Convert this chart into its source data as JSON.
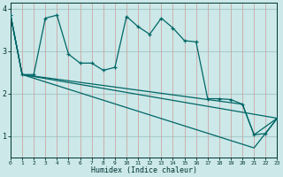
{
  "xlabel": "Humidex (Indice chaleur)",
  "bg_color": "#cce8e8",
  "h_grid_color": "#aacccc",
  "v_grid_color": "#cc9999",
  "line_color": "#006666",
  "x_ticks": [
    0,
    1,
    2,
    3,
    4,
    5,
    6,
    7,
    8,
    9,
    10,
    11,
    12,
    13,
    14,
    15,
    16,
    17,
    18,
    19,
    20,
    21,
    22,
    23
  ],
  "y_ticks": [
    1,
    2,
    3,
    4
  ],
  "xlim": [
    0,
    23
  ],
  "ylim": [
    0.5,
    4.15
  ],
  "main_line": {
    "x": [
      0,
      1,
      2,
      3,
      4,
      5,
      6,
      7,
      8,
      9,
      10,
      11,
      12,
      13,
      14,
      15,
      16,
      17,
      18,
      19,
      20,
      21,
      22,
      23
    ],
    "y": [
      3.85,
      2.45,
      2.45,
      3.78,
      3.85,
      2.93,
      2.72,
      2.72,
      2.55,
      2.62,
      3.82,
      3.58,
      3.4,
      3.78,
      3.55,
      3.25,
      3.22,
      1.88,
      1.88,
      1.86,
      1.75,
      1.03,
      1.06,
      1.42
    ]
  },
  "straight_lines": [
    {
      "x": [
        0,
        1,
        20,
        21,
        23
      ],
      "y": [
        3.85,
        2.45,
        1.75,
        1.03,
        1.42
      ]
    },
    {
      "x": [
        0,
        1,
        23
      ],
      "y": [
        3.85,
        2.45,
        1.42
      ]
    },
    {
      "x": [
        0,
        1,
        21,
        23
      ],
      "y": [
        3.85,
        2.45,
        0.72,
        1.42
      ]
    }
  ]
}
